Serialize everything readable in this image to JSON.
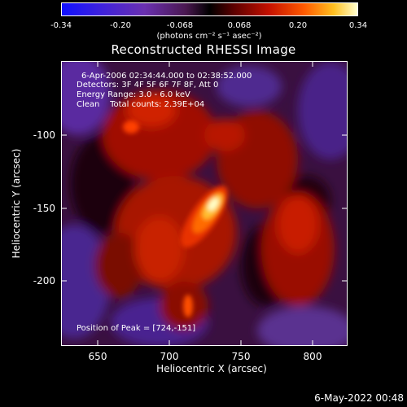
{
  "colorbar": {
    "ticks": [
      "-0.34",
      "-0.20",
      "-0.068",
      "0.068",
      "0.20",
      "0.34"
    ],
    "unit": "(photons cm⁻² s⁻¹ asec⁻²)"
  },
  "plot": {
    "title": "Reconstructed RHESSI Image",
    "info": {
      "time_range": "6-Apr-2006 02:34:44.000 to 02:38:52.000",
      "detectors": "Detectors: 3F 4F 5F 6F 7F 8F, Att 0",
      "energy": "Energy Range: 3.0 - 6.0 keV",
      "clean": "Clean    Total counts: 2.39E+04"
    },
    "peak": "Position of Peak = [724,-151]",
    "x_axis": {
      "title": "Heliocentric X (arcsec)",
      "ticks": [
        "650",
        "700",
        "750",
        "800"
      ]
    },
    "y_axis": {
      "title": "Heliocentric Y (arcsec)",
      "ticks": [
        "-100",
        "-150",
        "-200"
      ]
    }
  },
  "footer": {
    "date": "6-May-2022 00:48"
  }
}
